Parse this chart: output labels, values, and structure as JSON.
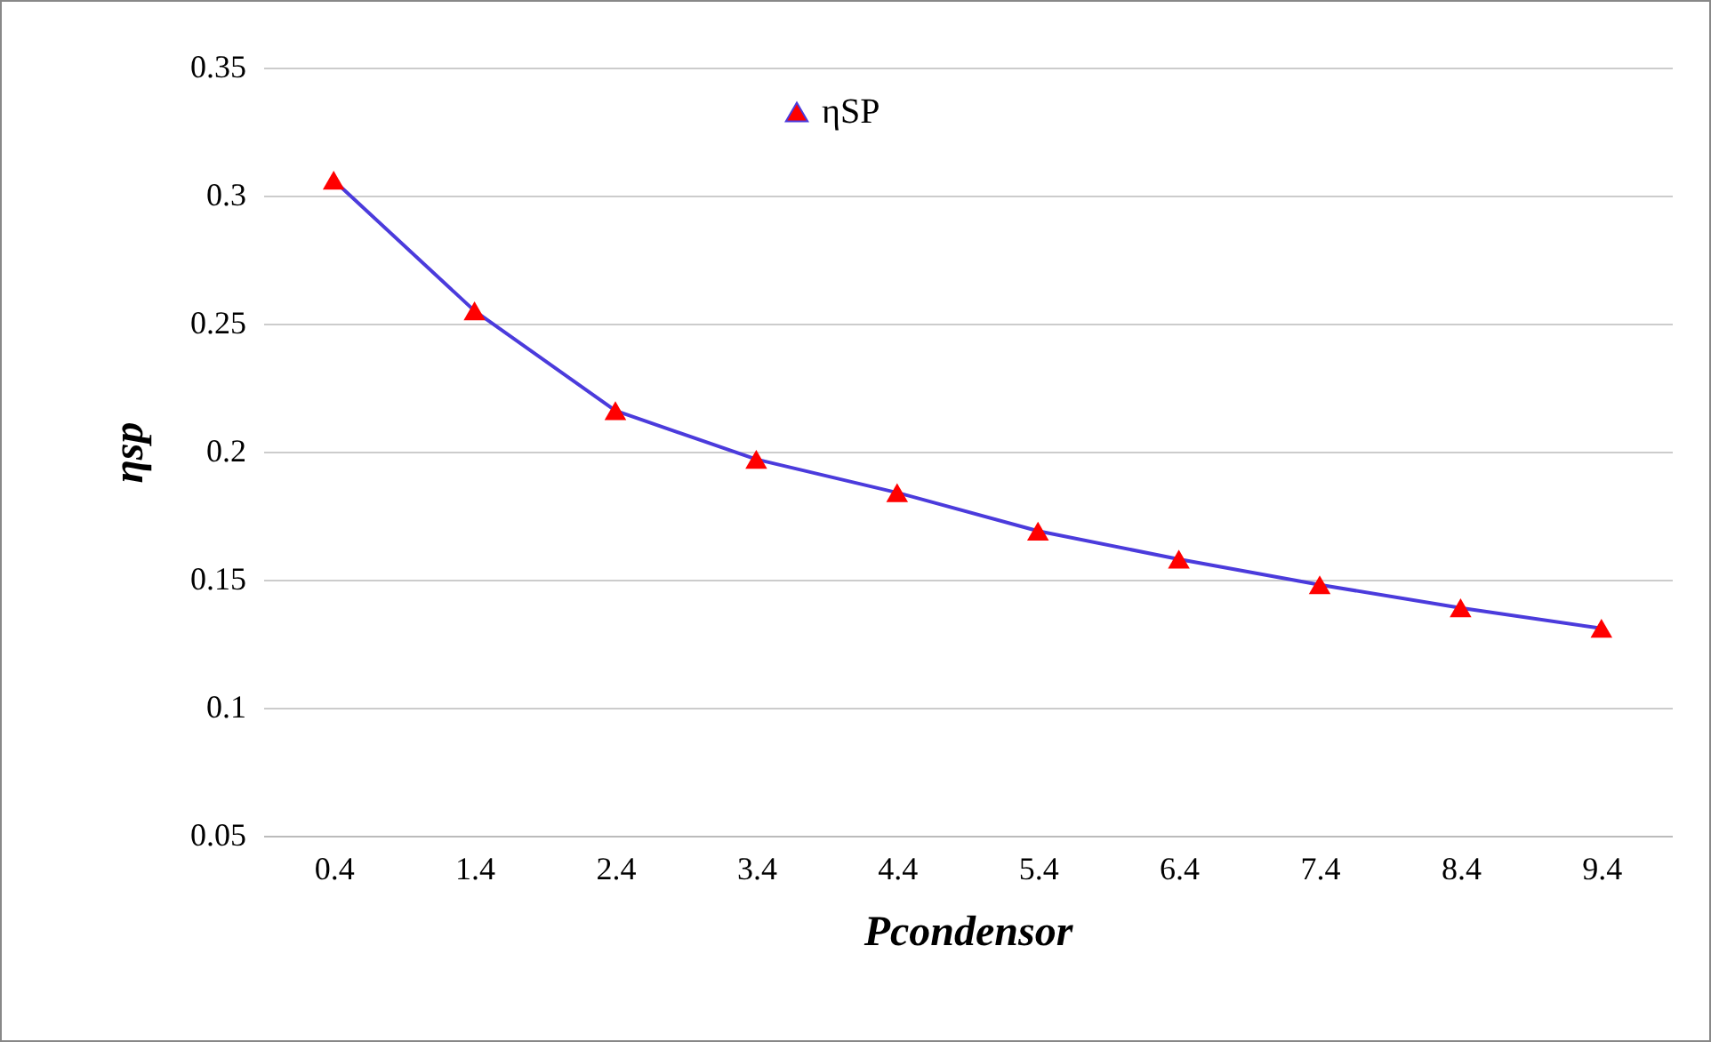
{
  "chart_data": {
    "type": "line",
    "xlabel": "Pcondensor",
    "ylabel": "ηsp",
    "categories": [
      "0.4",
      "1.4",
      "2.4",
      "3.4",
      "4.4",
      "5.4",
      "6.4",
      "7.4",
      "8.4",
      "9.4"
    ],
    "series": [
      {
        "name": "ηSP",
        "color": "#4b3bdc",
        "colors": [
          "#ff0000",
          "#ff0000",
          "#ff0000",
          "#ff0000",
          "#ff0000",
          "#ff0000",
          "#ff0000",
          "#ff0000",
          "#ff0000",
          "#ff0000"
        ],
        "values": [
          0.306,
          0.255,
          0.216,
          0.197,
          0.184,
          0.169,
          0.158,
          0.148,
          0.139,
          0.131
        ]
      }
    ],
    "ylim": [
      0.05,
      0.35
    ],
    "yticks": [
      0.05,
      0.1,
      0.15,
      0.2,
      0.25,
      0.3,
      0.35
    ],
    "grid": "y",
    "legend": "top",
    "marker": "triangle",
    "line_style": "solid"
  }
}
